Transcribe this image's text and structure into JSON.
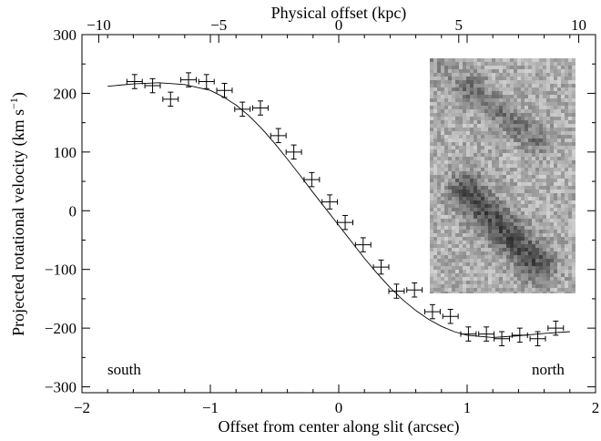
{
  "chart_data": {
    "type": "scatter",
    "title": "",
    "xlabel": "Offset from center along slit (arcsec)",
    "ylabel": "Projected rotational velocity (km s",
    "ylabel_unit_sup": "−1",
    "ylabel_close": ")",
    "top_xlabel": "Physical offset (kpc)",
    "xlim": [
      -2,
      2
    ],
    "ylim": [
      -310,
      300
    ],
    "top_xlim": [
      -10.7,
      10.7
    ],
    "x_ticks": [
      -2,
      -1,
      0,
      1,
      2
    ],
    "x_tick_labels": [
      "−2",
      "−1",
      "0",
      "1",
      "2"
    ],
    "y_ticks": [
      -300,
      -200,
      -100,
      0,
      100,
      200,
      300
    ],
    "y_tick_labels": [
      "−300",
      "−200",
      "−100",
      "0",
      "100",
      "200",
      "300"
    ],
    "top_x_ticks": [
      -10,
      -5,
      0,
      5,
      10
    ],
    "top_x_tick_labels": [
      "−10",
      "−5",
      "0",
      "5",
      "10"
    ],
    "grid": false,
    "annotations": [
      "south",
      "north"
    ],
    "inset_image": "grayscale two-dimensional spectrum",
    "series": [
      {
        "x": [
          -1.59,
          -1.45,
          -1.31,
          -1.17,
          -1.03,
          -0.89,
          -0.75,
          -0.61,
          -0.47,
          -0.35,
          -0.21,
          -0.07,
          0.05,
          0.19,
          0.33,
          0.45,
          0.59,
          0.73,
          0.87,
          1.01,
          1.15,
          1.27,
          1.41,
          1.55,
          1.69
        ],
        "y": [
          220,
          213,
          190,
          223,
          220,
          205,
          173,
          175,
          128,
          100,
          53,
          15,
          -20,
          -58,
          -96,
          -137,
          -135,
          -172,
          -180,
          -210,
          -210,
          -218,
          -212,
          -218,
          -200
        ],
        "x_err": 0.06,
        "y_err": 12
      }
    ],
    "model_curve": {
      "x": [
        -1.8,
        -1.6,
        -1.4,
        -1.2,
        -1.0,
        -0.9,
        -0.8,
        -0.7,
        -0.6,
        -0.5,
        -0.4,
        -0.3,
        -0.2,
        -0.1,
        0.0,
        0.1,
        0.2,
        0.3,
        0.4,
        0.5,
        0.6,
        0.7,
        0.8,
        0.9,
        1.0,
        1.2,
        1.4,
        1.6,
        1.8
      ],
      "y": [
        212,
        216,
        218,
        215,
        205,
        194,
        180,
        162,
        140,
        115,
        88,
        60,
        31,
        3,
        -25,
        -53,
        -81,
        -107,
        -131,
        -152,
        -170,
        -185,
        -197,
        -206,
        -212,
        -216,
        -213,
        -209,
        -206
      ]
    }
  }
}
